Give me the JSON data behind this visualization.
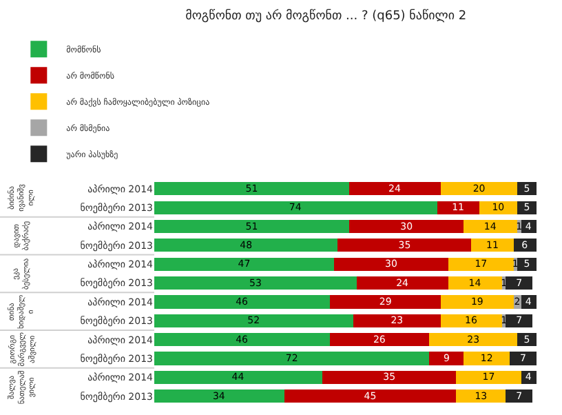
{
  "chart_data": {
    "type": "bar",
    "orientation": "horizontal",
    "stacked": true,
    "data_labels": true,
    "legend": "top",
    "title": "მოგწონთ თუ არ მოგწონთ ... ? (q65) ნაწილი 2",
    "categories": [
      "აპრილი 2014",
      "ნოემბერი 2013",
      "აპრილი 2014",
      "ნოემბერი 2013",
      "აპრილი 2014",
      "ნოემბერი 2013",
      "აპრილი 2014",
      "ნოემბერი 2013",
      "აპრილი 2014",
      "ნოემბერი 2013",
      "აპრილი 2014",
      "ნოემბერი 2013"
    ],
    "annotations": [
      "ბიძინა ივანიშვილი",
      "დავით ბაქრაძე",
      "ეკა ბესელია",
      "თინა ხიდაშელი",
      "გიორგი მარგველაშვილი",
      "შალვა ნათელაშვილი"
    ],
    "series": [
      {
        "name": "მომწონს",
        "color": "#22b04b",
        "values": [
          51,
          74,
          51,
          48,
          47,
          53,
          46,
          52,
          46,
          72,
          44,
          34
        ]
      },
      {
        "name": "არ მომწონს",
        "color": "#c00000",
        "values": [
          24,
          11,
          30,
          35,
          30,
          24,
          29,
          23,
          26,
          9,
          35,
          45
        ]
      },
      {
        "name": "არ მაქვს ჩამოყალიბებული პოზიცია",
        "color": "#ffc000",
        "values": [
          20,
          10,
          14,
          11,
          17,
          14,
          19,
          16,
          23,
          12,
          17,
          13
        ]
      },
      {
        "name": "არ მსმენია",
        "color": "#a6a6a6",
        "values": [
          null,
          null,
          1,
          null,
          1,
          1,
          2,
          1,
          null,
          null,
          null,
          null
        ]
      },
      {
        "name": "უარი პასუხზე",
        "color": "#262626",
        "values": [
          5,
          5,
          4,
          6,
          5,
          7,
          4,
          7,
          5,
          7,
          4,
          7
        ]
      }
    ]
  }
}
